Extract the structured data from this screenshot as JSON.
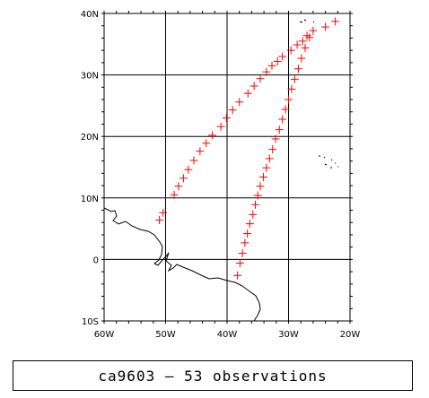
{
  "map": {
    "lon_labels": [
      "60W",
      "50W",
      "40W",
      "30W",
      "20W"
    ],
    "lat_labels": [
      "40N",
      "30N",
      "20N",
      "10N",
      "0",
      "10S"
    ],
    "lon_range": [
      -60,
      -20
    ],
    "lat_range": [
      -10,
      40
    ],
    "marker_color": "#ff0000",
    "marker_symbol": "+",
    "track_points": [
      [
        -51.0,
        6.4
      ],
      [
        -50.4,
        7.6
      ],
      [
        -48.6,
        10.5
      ],
      [
        -47.9,
        11.9
      ],
      [
        -47.1,
        13.2
      ],
      [
        -46.3,
        14.6
      ],
      [
        -45.4,
        16.1
      ],
      [
        -44.4,
        17.6
      ],
      [
        -43.4,
        18.9
      ],
      [
        -42.4,
        20.2
      ],
      [
        -41.0,
        21.6
      ],
      [
        -40.1,
        23.0
      ],
      [
        -39.1,
        24.3
      ],
      [
        -38.0,
        25.6
      ],
      [
        -36.6,
        27.0
      ],
      [
        -35.6,
        28.2
      ],
      [
        -34.6,
        29.4
      ],
      [
        -33.6,
        30.5
      ],
      [
        -32.7,
        31.5
      ],
      [
        -31.8,
        32.2
      ],
      [
        -31.0,
        33.0
      ],
      [
        -29.6,
        34.0
      ],
      [
        -28.6,
        34.9
      ],
      [
        -27.7,
        35.5
      ],
      [
        -27.0,
        36.4
      ],
      [
        -26.0,
        37.2
      ],
      [
        -24.0,
        37.8
      ],
      [
        -22.4,
        38.7
      ],
      [
        -26.6,
        36.1
      ],
      [
        -27.3,
        34.4
      ],
      [
        -27.9,
        32.7
      ],
      [
        -28.4,
        31.0
      ],
      [
        -29.0,
        29.3
      ],
      [
        -29.5,
        27.7
      ],
      [
        -30.0,
        26.0
      ],
      [
        -30.5,
        24.4
      ],
      [
        -31.0,
        22.8
      ],
      [
        -31.5,
        21.1
      ],
      [
        -32.1,
        19.6
      ],
      [
        -32.6,
        17.9
      ],
      [
        -33.1,
        16.4
      ],
      [
        -33.6,
        14.9
      ],
      [
        -34.1,
        13.4
      ],
      [
        -34.6,
        11.9
      ],
      [
        -35.0,
        10.4
      ],
      [
        -35.4,
        8.9
      ],
      [
        -35.8,
        7.3
      ],
      [
        -36.3,
        5.8
      ],
      [
        -36.7,
        4.2
      ],
      [
        -37.1,
        2.7
      ],
      [
        -37.5,
        1.0
      ],
      [
        -37.9,
        -0.6
      ],
      [
        -38.3,
        -2.6
      ]
    ]
  },
  "caption": {
    "text": "ca9603 – 53 observations"
  }
}
